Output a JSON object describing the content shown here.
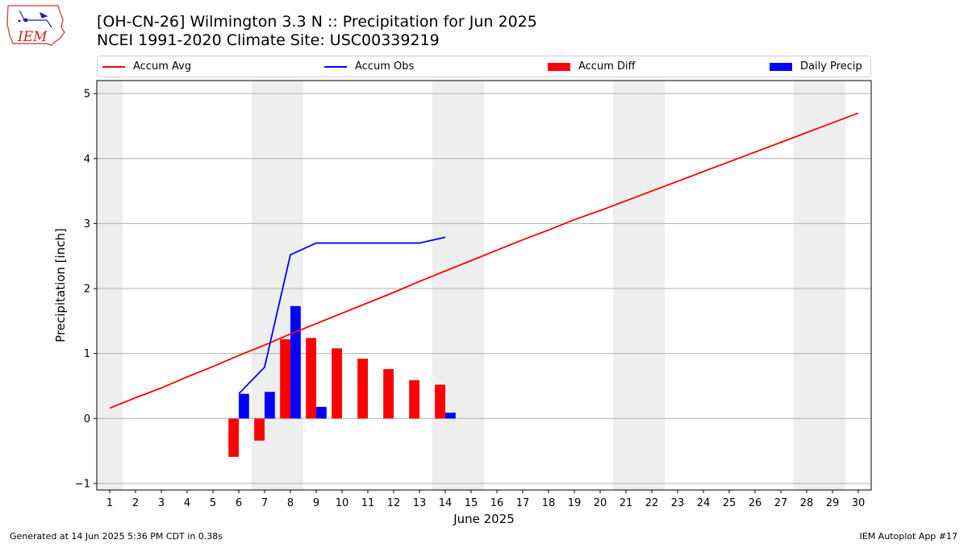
{
  "header": {
    "title_line1": "[OH-CN-26] Wilmington 3.3 N :: Precipitation for Jun 2025",
    "title_line2": "NCEI 1991-2020 Climate Site: USC00339219"
  },
  "logo": {
    "text": "IEM"
  },
  "footer": {
    "left": "Generated at 14 Jun 2025 5:36 PM CDT in 0.38s",
    "right": "IEM Autoplot App #17"
  },
  "colors": {
    "avg": "#ff0000",
    "obs": "#0000ff",
    "diff": "#ff0000",
    "daily": "#0000ff",
    "weekend": "#eeeeee",
    "grid": "#b0b0b0"
  },
  "chart_data": {
    "type": "bar",
    "xlabel": "June 2025",
    "ylabel": "Precipitation [inch]",
    "xlim": [
      0.5,
      30.5
    ],
    "ylim": [
      -1.1,
      5.2
    ],
    "yticks": [
      -1,
      0,
      1,
      2,
      3,
      4,
      5
    ],
    "xticks": [
      1,
      2,
      3,
      4,
      5,
      6,
      7,
      8,
      9,
      10,
      11,
      12,
      13,
      14,
      15,
      16,
      17,
      18,
      19,
      20,
      21,
      22,
      23,
      24,
      25,
      26,
      27,
      28,
      29,
      30
    ],
    "grid": "y",
    "legend_placement": "top",
    "legend": [
      "Accum Avg",
      "Accum Obs",
      "Accum Diff",
      "Daily Precip"
    ],
    "weekend_days": [
      1,
      7,
      8,
      14,
      15,
      21,
      22,
      28,
      29
    ],
    "accum_avg": {
      "days": [
        1,
        2,
        3,
        4,
        5,
        6,
        7,
        8,
        9,
        10,
        11,
        12,
        13,
        14,
        15,
        16,
        17,
        18,
        19,
        20,
        21,
        22,
        23,
        24,
        25,
        26,
        27,
        28,
        29,
        30
      ],
      "values": [
        0.16,
        0.32,
        0.47,
        0.64,
        0.8,
        0.97,
        1.13,
        1.3,
        1.46,
        1.62,
        1.78,
        1.94,
        2.11,
        2.27,
        2.43,
        2.59,
        2.75,
        2.9,
        3.06,
        3.2,
        3.35,
        3.5,
        3.65,
        3.8,
        3.95,
        4.1,
        4.25,
        4.4,
        4.55,
        4.7
      ]
    },
    "accum_obs": {
      "days": [
        6,
        7,
        8,
        9,
        10,
        11,
        12,
        13,
        14
      ],
      "values": [
        0.38,
        0.79,
        2.52,
        2.7,
        2.7,
        2.7,
        2.7,
        2.7,
        2.79
      ]
    },
    "accum_diff": {
      "days": [
        6,
        7,
        8,
        9,
        10,
        11,
        12,
        13,
        14
      ],
      "values": [
        -0.59,
        -0.34,
        1.22,
        1.24,
        1.08,
        0.92,
        0.76,
        0.59,
        0.52
      ]
    },
    "daily_precip": {
      "days": [
        6,
        7,
        8,
        9,
        10,
        11,
        12,
        13,
        14
      ],
      "values": [
        0.38,
        0.41,
        1.73,
        0.18,
        0,
        0,
        0,
        0,
        0.09
      ]
    }
  }
}
